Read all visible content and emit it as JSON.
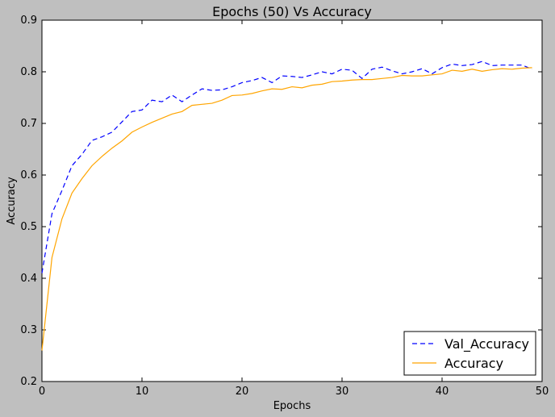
{
  "chart_data": {
    "type": "line",
    "title": "Epochs (50) Vs Accuracy",
    "xlabel": "Epochs",
    "ylabel": "Accuracy",
    "xlim": [
      0,
      50
    ],
    "ylim": [
      0.2,
      0.9
    ],
    "xticks": [
      0,
      10,
      20,
      30,
      40,
      50
    ],
    "yticks": [
      0.2,
      0.3,
      0.4,
      0.5,
      0.6,
      0.7,
      0.8,
      0.9
    ],
    "grid": false,
    "legend_position": "lower-right",
    "series": [
      {
        "name": "Val_Accuracy",
        "color": "#0000ff",
        "style": "dashed",
        "x": [
          0,
          1,
          2,
          3,
          4,
          5,
          6,
          7,
          8,
          9,
          10,
          11,
          12,
          13,
          14,
          15,
          16,
          17,
          18,
          19,
          20,
          21,
          22,
          23,
          24,
          25,
          26,
          27,
          28,
          29,
          30,
          31,
          32,
          33,
          34,
          35,
          36,
          37,
          38,
          39,
          40,
          41,
          42,
          43,
          44,
          45,
          46,
          47,
          48,
          49
        ],
        "values": [
          0.41,
          0.525,
          0.57,
          0.618,
          0.64,
          0.667,
          0.674,
          0.683,
          0.703,
          0.723,
          0.726,
          0.745,
          0.742,
          0.755,
          0.742,
          0.755,
          0.767,
          0.764,
          0.765,
          0.771,
          0.779,
          0.783,
          0.789,
          0.779,
          0.792,
          0.791,
          0.789,
          0.794,
          0.8,
          0.796,
          0.805,
          0.803,
          0.787,
          0.805,
          0.809,
          0.802,
          0.796,
          0.8,
          0.806,
          0.796,
          0.808,
          0.815,
          0.812,
          0.814,
          0.82,
          0.812,
          0.813,
          0.813,
          0.813,
          0.805
        ]
      },
      {
        "name": "Accuracy",
        "color": "#ffa500",
        "style": "solid",
        "x": [
          0,
          1,
          2,
          3,
          4,
          5,
          6,
          7,
          8,
          9,
          10,
          11,
          12,
          13,
          14,
          15,
          16,
          17,
          18,
          19,
          20,
          21,
          22,
          23,
          24,
          25,
          26,
          27,
          28,
          29,
          30,
          31,
          32,
          33,
          34,
          35,
          36,
          37,
          38,
          39,
          40,
          41,
          42,
          43,
          44,
          45,
          46,
          47,
          48,
          49
        ],
        "values": [
          0.26,
          0.44,
          0.515,
          0.565,
          0.593,
          0.618,
          0.636,
          0.652,
          0.666,
          0.683,
          0.693,
          0.702,
          0.71,
          0.718,
          0.723,
          0.735,
          0.737,
          0.739,
          0.745,
          0.754,
          0.755,
          0.758,
          0.763,
          0.767,
          0.766,
          0.771,
          0.769,
          0.774,
          0.776,
          0.781,
          0.782,
          0.784,
          0.785,
          0.785,
          0.787,
          0.789,
          0.793,
          0.792,
          0.792,
          0.794,
          0.796,
          0.803,
          0.801,
          0.805,
          0.801,
          0.804,
          0.806,
          0.805,
          0.807,
          0.808
        ]
      }
    ]
  }
}
